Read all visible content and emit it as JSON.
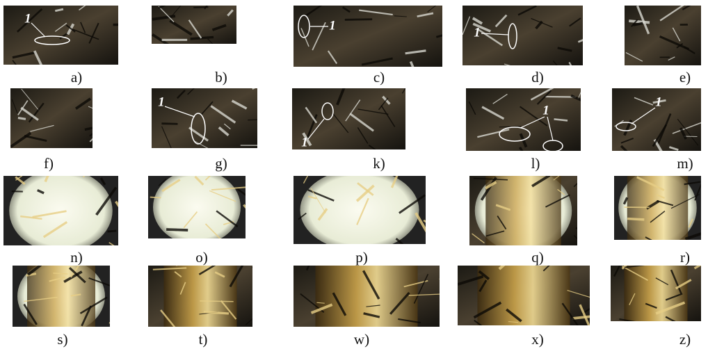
{
  "panels": [
    {
      "label": "a)",
      "marker": "1"
    },
    {
      "label": "b)"
    },
    {
      "label": "c)",
      "marker": "1"
    },
    {
      "label": "d)",
      "marker": "1"
    },
    {
      "label": "e)"
    },
    {
      "label": "f)"
    },
    {
      "label": "g)",
      "marker": "1"
    },
    {
      "label": "k)",
      "marker": "1"
    },
    {
      "label": "l)",
      "marker": "1"
    },
    {
      "label": "m)",
      "marker": "1"
    },
    {
      "label": "n)"
    },
    {
      "label": "o)"
    },
    {
      "label": "p)"
    },
    {
      "label": "q)"
    },
    {
      "label": "r)"
    },
    {
      "label": "s)"
    },
    {
      "label": "t)"
    },
    {
      "label": "w)"
    },
    {
      "label": "x)"
    },
    {
      "label": "z)"
    }
  ]
}
